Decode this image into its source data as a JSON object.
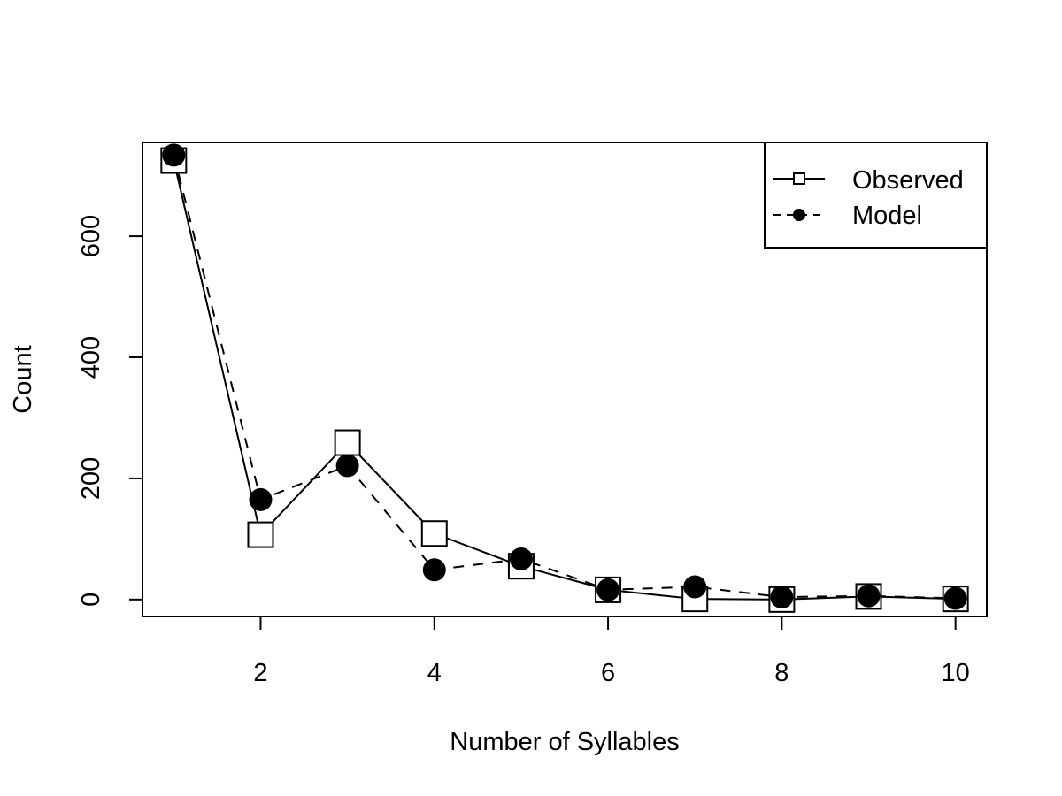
{
  "chart_data": {
    "type": "line",
    "title": "",
    "xlabel": "Number of Syllables",
    "ylabel": "Count",
    "xlim": [
      0.64,
      10.36
    ],
    "ylim": [
      -28,
      755
    ],
    "x_ticks": [
      2,
      4,
      6,
      8,
      10
    ],
    "y_ticks": [
      0,
      200,
      400,
      600
    ],
    "x": [
      1,
      2,
      3,
      4,
      5,
      6,
      7,
      8,
      9,
      10
    ],
    "series": [
      {
        "name": "Observed",
        "marker": "open-square",
        "line_style": "solid",
        "values": [
          725,
          107,
          259,
          109,
          55,
          16,
          1,
          0,
          5,
          1
        ]
      },
      {
        "name": "Model",
        "marker": "filled-circle",
        "line_style": "dashed",
        "values": [
          734,
          165,
          221,
          49,
          67,
          16,
          21,
          4,
          6,
          2
        ]
      }
    ],
    "legend_position": "top-right",
    "grid": false,
    "colors": {
      "line": "#000000",
      "background": "#ffffff"
    }
  }
}
